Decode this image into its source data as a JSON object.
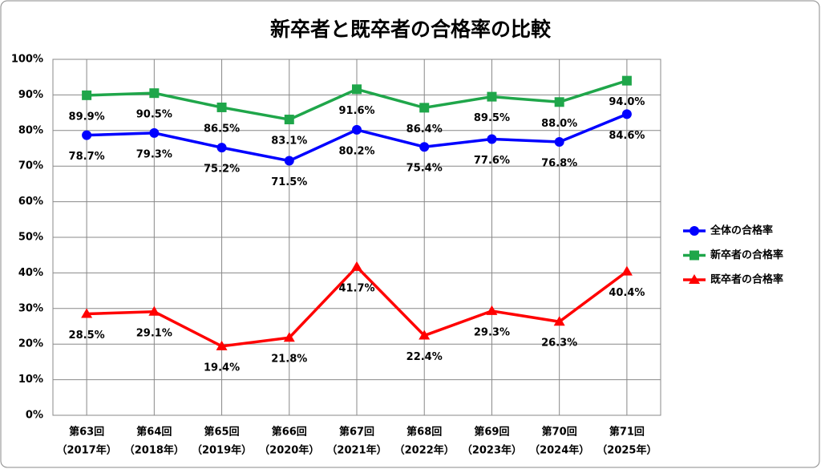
{
  "chart_data": {
    "type": "line",
    "title": "新卒者と既卒者の合格率の比較",
    "categories": [
      [
        "第63回",
        "（2017年）"
      ],
      [
        "第64回",
        "（2018年）"
      ],
      [
        "第65回",
        "（2019年）"
      ],
      [
        "第66回",
        "（2020年）"
      ],
      [
        "第67回",
        "（2021年）"
      ],
      [
        "第68回",
        "（2022年）"
      ],
      [
        "第69回",
        "（2023年）"
      ],
      [
        "第70回",
        "（2024年）"
      ],
      [
        "第71回",
        "（2025年）"
      ]
    ],
    "series": [
      {
        "name": "全体の合格率",
        "color": "#0000ff",
        "marker": "circle",
        "values": [
          78.7,
          79.3,
          75.2,
          71.5,
          80.2,
          75.4,
          77.6,
          76.8,
          84.6
        ],
        "value_labels": [
          "78.7%",
          "79.3%",
          "75.2%",
          "71.5%",
          "80.2%",
          "75.4%",
          "77.6%",
          "76.8%",
          "84.6%"
        ]
      },
      {
        "name": "新卒者の合格率",
        "color": "#1fa64a",
        "marker": "square",
        "values": [
          89.9,
          90.5,
          86.5,
          83.1,
          91.6,
          86.4,
          89.5,
          88.0,
          94.0
        ],
        "value_labels": [
          "89.9%",
          "90.5%",
          "86.5%",
          "83.1%",
          "91.6%",
          "86.4%",
          "89.5%",
          "88.0%",
          "94.0%"
        ]
      },
      {
        "name": "既卒者の合格率",
        "color": "#ff0000",
        "marker": "triangle",
        "values": [
          28.5,
          29.1,
          19.4,
          21.8,
          41.7,
          22.4,
          29.3,
          26.3,
          40.4
        ],
        "value_labels": [
          "28.5%",
          "29.1%",
          "19.4%",
          "21.8%",
          "41.7%",
          "22.4%",
          "29.3%",
          "26.3%",
          "40.4%"
        ]
      }
    ],
    "ylim": [
      0,
      100
    ],
    "yticks": [
      {
        "value": 0,
        "label": "0%"
      },
      {
        "value": 10,
        "label": "10%"
      },
      {
        "value": 20,
        "label": "20%"
      },
      {
        "value": 30,
        "label": "30%"
      },
      {
        "value": 40,
        "label": "40%"
      },
      {
        "value": 50,
        "label": "50%"
      },
      {
        "value": 60,
        "label": "60%"
      },
      {
        "value": 70,
        "label": "70%"
      },
      {
        "value": 80,
        "label": "80%"
      },
      {
        "value": 90,
        "label": "90%"
      },
      {
        "value": 100,
        "label": "100%"
      }
    ],
    "grid": true,
    "legend": "right"
  }
}
